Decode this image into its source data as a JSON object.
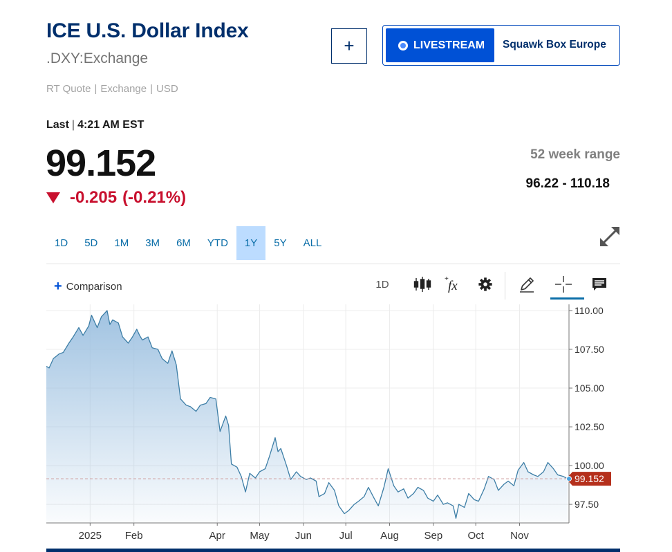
{
  "header": {
    "title": "ICE U.S. Dollar Index",
    "symbol": ".DXY:Exchange",
    "meta": [
      "RT Quote",
      "Exchange",
      "USD"
    ],
    "add_label": "+"
  },
  "livestream": {
    "button_label": "LIVESTREAM",
    "show_name": "Squawk Box Europe"
  },
  "quote": {
    "last_label": "Last",
    "time": "4:21 AM EST",
    "price": "99.152",
    "change": "-0.205",
    "change_pct": "(-0.21%)",
    "range_label": "52 week range",
    "range_value": "96.22 - 110.18"
  },
  "tabs": [
    {
      "label": "1D",
      "active": false
    },
    {
      "label": "5D",
      "active": false
    },
    {
      "label": "1M",
      "active": false
    },
    {
      "label": "3M",
      "active": false
    },
    {
      "label": "6M",
      "active": false
    },
    {
      "label": "YTD",
      "active": false
    },
    {
      "label": "1Y",
      "active": true
    },
    {
      "label": "5Y",
      "active": false
    },
    {
      "label": "ALL",
      "active": false
    }
  ],
  "toolbar": {
    "comparison_label": "Comparison",
    "interval_label": "1D",
    "icons": [
      "candlestick-icon",
      "fx-icon",
      "gear-icon",
      "pencil-icon",
      "crosshair-icon",
      "news-icon"
    ]
  },
  "colors": {
    "brand": "#002f6c",
    "accent": "#0051d6",
    "negative": "#c8102e",
    "line": "#3d7ea6",
    "area": "#9cc0e0"
  },
  "chart_data": {
    "type": "area",
    "title": "",
    "xlabel": "",
    "ylabel": "",
    "ylim": [
      96.3,
      110.4
    ],
    "x_range": [
      "2024-12-01",
      "2025-12-06"
    ],
    "yticks": [
      97.5,
      100,
      102.5,
      105,
      107.5,
      110
    ],
    "ytick_labels": [
      "97.50",
      "100.00",
      "102.50",
      "105.00",
      "107.50",
      "110.00"
    ],
    "xticks": [
      {
        "date": "2025-01-01",
        "label": "2025"
      },
      {
        "date": "2025-02-01",
        "label": "Feb"
      },
      {
        "date": "2025-04-01",
        "label": "Apr"
      },
      {
        "date": "2025-05-01",
        "label": "May"
      },
      {
        "date": "2025-06-01",
        "label": "Jun"
      },
      {
        "date": "2025-07-01",
        "label": "Jul"
      },
      {
        "date": "2025-08-01",
        "label": "Aug"
      },
      {
        "date": "2025-09-01",
        "label": "Sep"
      },
      {
        "date": "2025-10-01",
        "label": "Oct"
      },
      {
        "date": "2025-11-01",
        "label": "Nov"
      }
    ],
    "current": {
      "value": 99.152,
      "label": "99.152"
    },
    "grid": true,
    "series": [
      {
        "values": [
          [
            "2024-12-01",
            106.4
          ],
          [
            "2024-12-03",
            106.3
          ],
          [
            "2024-12-06",
            106.9
          ],
          [
            "2024-12-10",
            107.2
          ],
          [
            "2024-12-13",
            107.3
          ],
          [
            "2024-12-17",
            107.9
          ],
          [
            "2024-12-20",
            108.3
          ],
          [
            "2024-12-24",
            108.9
          ],
          [
            "2024-12-27",
            108.4
          ],
          [
            "2024-12-31",
            109.0
          ],
          [
            "2025-01-02",
            109.7
          ],
          [
            "2025-01-06",
            108.9
          ],
          [
            "2025-01-09",
            109.6
          ],
          [
            "2025-01-13",
            110.0
          ],
          [
            "2025-01-15",
            109.1
          ],
          [
            "2025-01-17",
            109.4
          ],
          [
            "2025-01-21",
            109.2
          ],
          [
            "2025-01-24",
            108.3
          ],
          [
            "2025-01-28",
            107.9
          ],
          [
            "2025-01-31",
            108.3
          ],
          [
            "2025-02-03",
            108.8
          ],
          [
            "2025-02-05",
            108.4
          ],
          [
            "2025-02-07",
            108.1
          ],
          [
            "2025-02-11",
            108.3
          ],
          [
            "2025-02-14",
            107.6
          ],
          [
            "2025-02-18",
            107.5
          ],
          [
            "2025-02-21",
            106.9
          ],
          [
            "2025-02-25",
            106.6
          ],
          [
            "2025-02-28",
            107.4
          ],
          [
            "2025-03-03",
            106.5
          ],
          [
            "2025-03-06",
            104.3
          ],
          [
            "2025-03-10",
            103.9
          ],
          [
            "2025-03-13",
            103.8
          ],
          [
            "2025-03-17",
            103.5
          ],
          [
            "2025-03-20",
            103.9
          ],
          [
            "2025-03-24",
            104.0
          ],
          [
            "2025-03-27",
            104.4
          ],
          [
            "2025-03-31",
            104.3
          ],
          [
            "2025-04-03",
            102.2
          ],
          [
            "2025-04-07",
            103.2
          ],
          [
            "2025-04-09",
            102.6
          ],
          [
            "2025-04-11",
            100.1
          ],
          [
            "2025-04-15",
            99.9
          ],
          [
            "2025-04-18",
            99.3
          ],
          [
            "2025-04-21",
            98.3
          ],
          [
            "2025-04-24",
            99.5
          ],
          [
            "2025-04-28",
            99.2
          ],
          [
            "2025-05-01",
            99.6
          ],
          [
            "2025-05-05",
            99.8
          ],
          [
            "2025-05-08",
            100.6
          ],
          [
            "2025-05-12",
            101.8
          ],
          [
            "2025-05-14",
            100.9
          ],
          [
            "2025-05-16",
            101.1
          ],
          [
            "2025-05-20",
            100.0
          ],
          [
            "2025-05-23",
            99.1
          ],
          [
            "2025-05-27",
            99.6
          ],
          [
            "2025-05-30",
            99.3
          ],
          [
            "2025-06-03",
            99.1
          ],
          [
            "2025-06-06",
            99.2
          ],
          [
            "2025-06-10",
            99.0
          ],
          [
            "2025-06-12",
            98.0
          ],
          [
            "2025-06-16",
            98.2
          ],
          [
            "2025-06-19",
            98.9
          ],
          [
            "2025-06-23",
            98.4
          ],
          [
            "2025-06-26",
            97.4
          ],
          [
            "2025-06-30",
            96.9
          ],
          [
            "2025-07-03",
            97.1
          ],
          [
            "2025-07-07",
            97.5
          ],
          [
            "2025-07-10",
            97.7
          ],
          [
            "2025-07-14",
            98.0
          ],
          [
            "2025-07-17",
            98.6
          ],
          [
            "2025-07-21",
            97.9
          ],
          [
            "2025-07-24",
            97.4
          ],
          [
            "2025-07-28",
            98.6
          ],
          [
            "2025-07-31",
            99.8
          ],
          [
            "2025-08-04",
            98.7
          ],
          [
            "2025-08-07",
            98.3
          ],
          [
            "2025-08-11",
            98.5
          ],
          [
            "2025-08-14",
            97.9
          ],
          [
            "2025-08-18",
            98.2
          ],
          [
            "2025-08-21",
            98.6
          ],
          [
            "2025-08-25",
            98.4
          ],
          [
            "2025-08-28",
            97.9
          ],
          [
            "2025-09-01",
            97.7
          ],
          [
            "2025-09-04",
            98.1
          ],
          [
            "2025-09-08",
            97.5
          ],
          [
            "2025-09-11",
            97.6
          ],
          [
            "2025-09-15",
            97.4
          ],
          [
            "2025-09-17",
            96.6
          ],
          [
            "2025-09-19",
            97.5
          ],
          [
            "2025-09-23",
            97.3
          ],
          [
            "2025-09-26",
            98.2
          ],
          [
            "2025-09-30",
            97.8
          ],
          [
            "2025-10-03",
            97.7
          ],
          [
            "2025-10-07",
            98.5
          ],
          [
            "2025-10-10",
            99.3
          ],
          [
            "2025-10-14",
            99.1
          ],
          [
            "2025-10-17",
            98.4
          ],
          [
            "2025-10-21",
            98.8
          ],
          [
            "2025-10-24",
            99.0
          ],
          [
            "2025-10-28",
            98.7
          ],
          [
            "2025-10-31",
            99.7
          ],
          [
            "2025-11-04",
            100.2
          ],
          [
            "2025-11-07",
            99.6
          ],
          [
            "2025-11-11",
            99.4
          ],
          [
            "2025-11-14",
            99.3
          ],
          [
            "2025-11-18",
            99.6
          ],
          [
            "2025-11-21",
            100.2
          ],
          [
            "2025-11-25",
            99.8
          ],
          [
            "2025-11-28",
            99.4
          ],
          [
            "2025-12-02",
            99.3
          ],
          [
            "2025-12-05",
            99.152
          ]
        ]
      }
    ]
  }
}
